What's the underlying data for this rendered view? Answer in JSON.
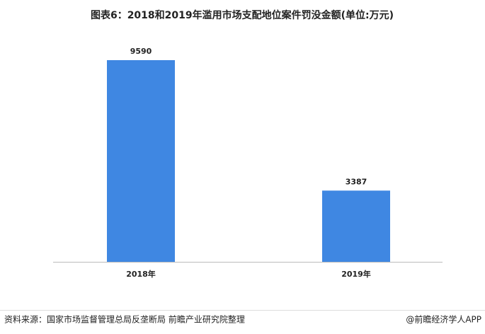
{
  "chart_data": {
    "type": "bar",
    "title": "图表6：2018和2019年滥用市场支配地位案件罚没金额(单位:万元)",
    "categories": [
      "2018年",
      "2019年"
    ],
    "values": [
      9590,
      3387
    ],
    "color": "#3f87e2"
  },
  "footer": {
    "source": "资料来源：国家市场监督管理总局反垄断局 前瞻产业研究院整理",
    "brand": "@前瞻经济学人APP"
  }
}
